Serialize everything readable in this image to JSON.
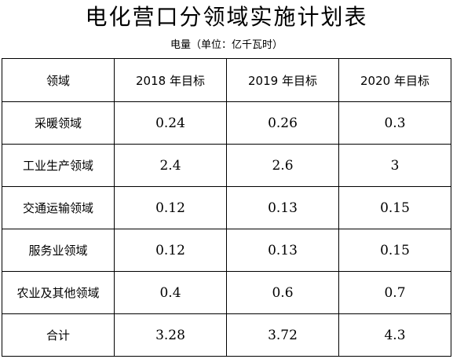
{
  "title": "电化营口分领域实施计划表",
  "unit_note": "电量（单位：亿千瓦时）",
  "table": {
    "headers": [
      "领域",
      "2018 年目标",
      "2019 年目标",
      "2020 年目标"
    ],
    "rows": [
      [
        "采暖领域",
        "0.24",
        "0.26",
        "0.3"
      ],
      [
        "工业生产领域",
        "2.4",
        "2.6",
        "3"
      ],
      [
        "交通运输领域",
        "0.12",
        "0.13",
        "0.15"
      ],
      [
        "服务业领域",
        "0.12",
        "0.13",
        "0.15"
      ],
      [
        "农业及其他领域",
        "0.4",
        "0.6",
        "0.7"
      ],
      [
        "合计",
        "3.28",
        "3.72",
        "4.3"
      ]
    ]
  }
}
